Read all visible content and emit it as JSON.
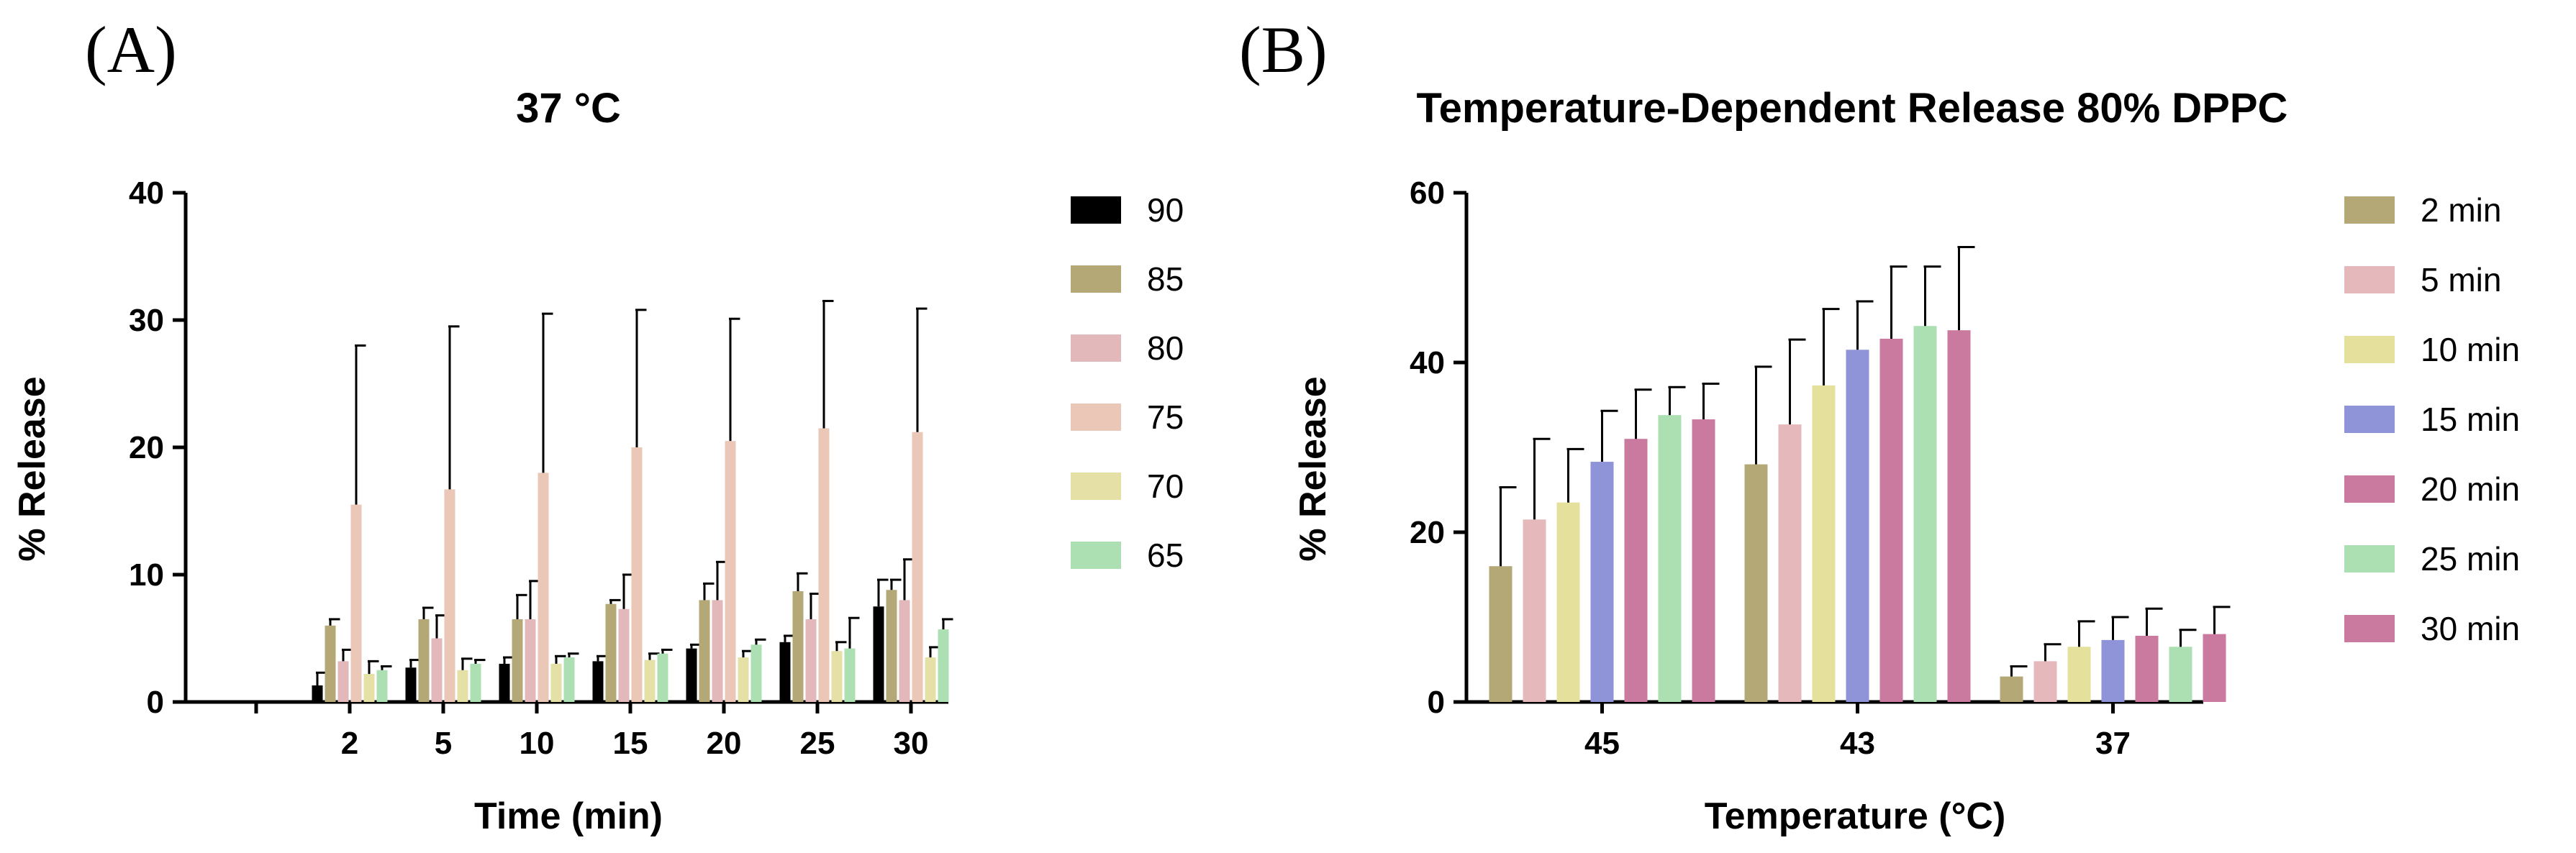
{
  "panels": {
    "a_label": "(A)",
    "b_label": "(B)"
  },
  "chart_data": [
    {
      "type": "bar",
      "panel": "A",
      "title": "37 °C",
      "xlabel": "Time (min)",
      "ylabel": "% Release",
      "ylim": [
        0,
        40
      ],
      "yticks": [
        0,
        10,
        20,
        30,
        40
      ],
      "categories": [
        "",
        "2",
        "5",
        "10",
        "15",
        "20",
        "25",
        "30"
      ],
      "legend_position": "right",
      "series": [
        {
          "name": "90",
          "color": "#000000",
          "values": [
            0,
            1.3,
            2.7,
            3.0,
            3.2,
            4.2,
            4.7,
            7.5
          ],
          "errors": [
            0,
            1.0,
            0.6,
            0.5,
            0.4,
            0.3,
            0.5,
            2.1
          ]
        },
        {
          "name": "85",
          "color": "#b5a877",
          "values": [
            0,
            6.0,
            6.5,
            6.5,
            7.7,
            8.0,
            8.7,
            8.8
          ],
          "errors": [
            0,
            0.5,
            0.9,
            1.9,
            0.3,
            1.3,
            1.4,
            0.8
          ]
        },
        {
          "name": "80",
          "color": "#e3b8ba",
          "values": [
            0,
            3.2,
            5.0,
            6.5,
            7.3,
            8.0,
            6.5,
            8.0
          ],
          "errors": [
            0,
            0.9,
            1.8,
            3.0,
            2.7,
            3.0,
            2.0,
            3.2
          ]
        },
        {
          "name": "75",
          "color": "#eac7b6",
          "values": [
            0,
            15.5,
            16.7,
            18.0,
            20.0,
            20.5,
            21.5,
            21.2
          ],
          "errors": [
            0,
            12.5,
            12.8,
            12.5,
            10.8,
            9.6,
            10.0,
            9.7
          ]
        },
        {
          "name": "70",
          "color": "#e5e1a6",
          "values": [
            0,
            2.2,
            2.5,
            3.0,
            3.3,
            3.5,
            4.0,
            3.5
          ],
          "errors": [
            0,
            1.0,
            0.9,
            0.6,
            0.5,
            0.5,
            0.7,
            0.8
          ]
        },
        {
          "name": "65",
          "color": "#acdfb2",
          "values": [
            0,
            2.5,
            3.0,
            3.5,
            3.8,
            4.5,
            4.2,
            5.7
          ],
          "errors": [
            0,
            0.3,
            0.3,
            0.3,
            0.3,
            0.4,
            2.4,
            0.8
          ]
        }
      ]
    },
    {
      "type": "bar",
      "panel": "B",
      "title": "Temperature-Dependent Release 80% DPPC",
      "xlabel": "Temperature (°C)",
      "ylabel": "% Release",
      "ylim": [
        0,
        60
      ],
      "yticks": [
        0,
        20,
        40,
        60
      ],
      "categories": [
        "45",
        "43",
        "37"
      ],
      "legend_position": "right",
      "series": [
        {
          "name": "2 min",
          "color": "#b5a877",
          "values": [
            16.0,
            28.0,
            3.0
          ],
          "errors": [
            9.3,
            11.5,
            1.2
          ]
        },
        {
          "name": "5 min",
          "color": "#e5b9bb",
          "values": [
            21.5,
            32.7,
            4.8
          ],
          "errors": [
            9.5,
            10.0,
            2.0
          ]
        },
        {
          "name": "10 min",
          "color": "#e5e09b",
          "values": [
            23.5,
            37.3,
            6.5
          ],
          "errors": [
            6.3,
            9.0,
            3.0
          ]
        },
        {
          "name": "15 min",
          "color": "#8f93d7",
          "values": [
            28.3,
            41.5,
            7.3
          ],
          "errors": [
            6.0,
            5.7,
            2.7
          ]
        },
        {
          "name": "20 min",
          "color": "#c97a9e",
          "values": [
            31.0,
            42.8,
            7.8
          ],
          "errors": [
            5.8,
            8.5,
            3.2
          ]
        },
        {
          "name": "25 min",
          "color": "#acdfb2",
          "values": [
            33.8,
            44.3,
            6.5
          ],
          "errors": [
            3.3,
            7.0,
            2.0
          ]
        },
        {
          "name": "30 min",
          "color": "#c97a9e",
          "values": [
            33.3,
            43.8,
            8.0
          ],
          "errors": [
            4.2,
            9.8,
            3.2
          ]
        }
      ]
    }
  ]
}
